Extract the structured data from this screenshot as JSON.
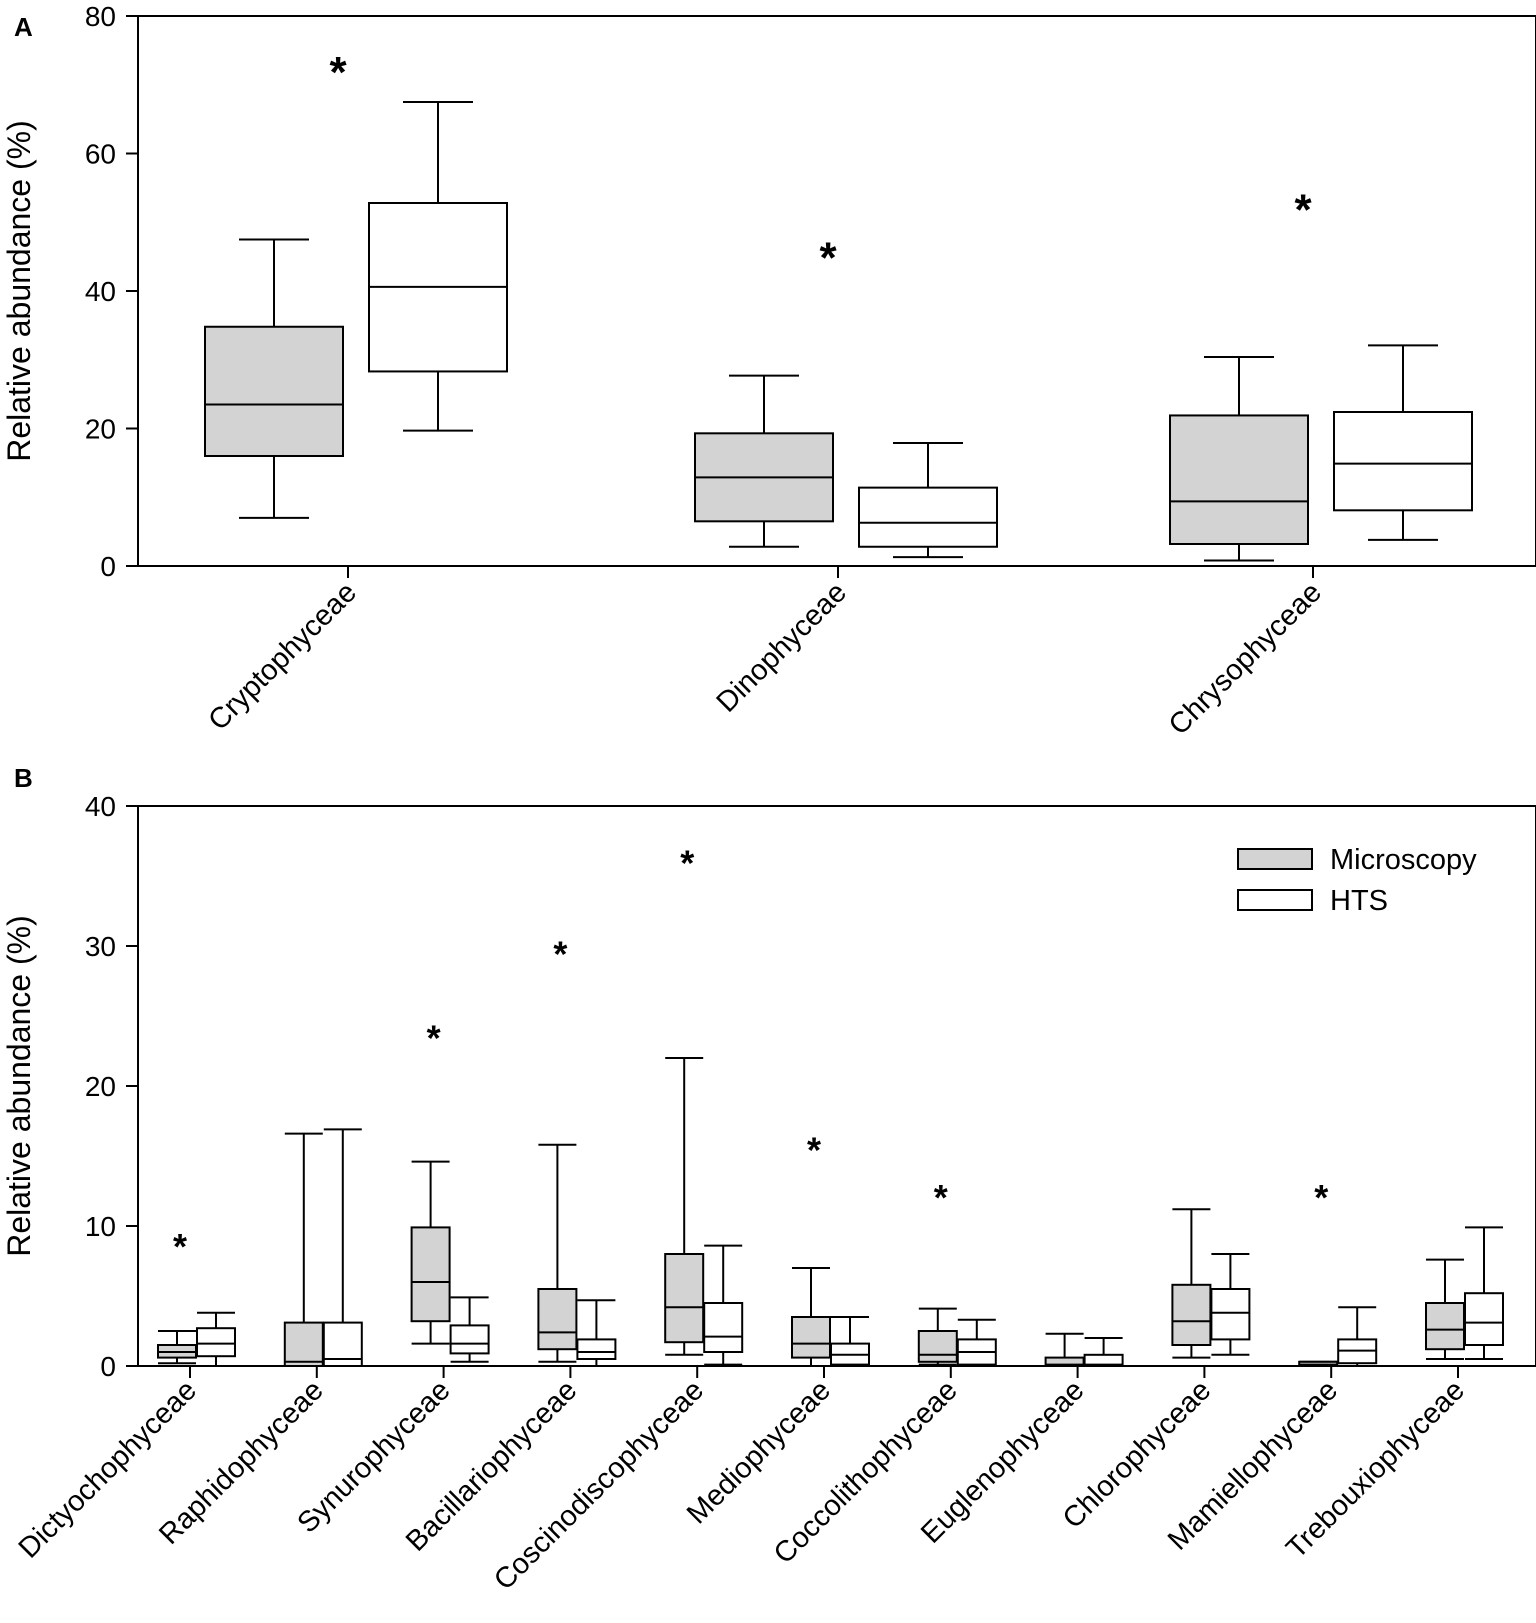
{
  "colors": {
    "microscopy": "#d3d3d3",
    "hts": "#ffffff",
    "stroke": "#000000"
  },
  "legend": {
    "position": "top-right",
    "items": [
      {
        "label": "Microscopy",
        "color": "#d3d3d3"
      },
      {
        "label": "HTS",
        "color": "#ffffff"
      }
    ]
  },
  "chart_data": [
    {
      "panel": "A",
      "type": "box",
      "ylabel": "Relative abundance (%)",
      "ylim": [
        0,
        80
      ],
      "yticks": [
        0,
        20,
        40,
        60,
        80
      ],
      "series_names": [
        "Microscopy",
        "HTS"
      ],
      "categories": [
        {
          "name": "Cryptophyceae",
          "significant": true,
          "star_y": 72,
          "boxes": [
            {
              "series": "Microscopy",
              "whisker_low": 7,
              "q1": 16,
              "median": 23.5,
              "q3": 34.8,
              "whisker_high": 47.5
            },
            {
              "series": "HTS",
              "whisker_low": 19.7,
              "q1": 28.3,
              "median": 40.6,
              "q3": 52.8,
              "whisker_high": 67.5
            }
          ]
        },
        {
          "name": "Dinophyceae",
          "significant": true,
          "star_y": 45,
          "boxes": [
            {
              "series": "Microscopy",
              "whisker_low": 2.8,
              "q1": 6.5,
              "median": 12.9,
              "q3": 19.3,
              "whisker_high": 27.7
            },
            {
              "series": "HTS",
              "whisker_low": 1.3,
              "q1": 2.8,
              "median": 6.3,
              "q3": 11.4,
              "whisker_high": 17.9
            }
          ]
        },
        {
          "name": "Chrysophyceae",
          "significant": true,
          "star_y": 52,
          "boxes": [
            {
              "series": "Microscopy",
              "whisker_low": 0.8,
              "q1": 3.2,
              "median": 9.4,
              "q3": 21.9,
              "whisker_high": 30.4
            },
            {
              "series": "HTS",
              "whisker_low": 3.8,
              "q1": 8.1,
              "median": 14.9,
              "q3": 22.4,
              "whisker_high": 32.1
            }
          ]
        }
      ]
    },
    {
      "panel": "B",
      "type": "box",
      "ylabel": "Relative abundance (%)",
      "ylim": [
        0,
        40
      ],
      "yticks": [
        0,
        10,
        20,
        30,
        40
      ],
      "series_names": [
        "Microscopy",
        "HTS"
      ],
      "categories": [
        {
          "name": "Dictyochophyceae",
          "significant": true,
          "star_y": 8.5,
          "boxes": [
            {
              "series": "Microscopy",
              "whisker_low": 0.2,
              "q1": 0.6,
              "median": 1.0,
              "q3": 1.5,
              "whisker_high": 2.5
            },
            {
              "series": "HTS",
              "whisker_low": 0.0,
              "q1": 0.7,
              "median": 1.6,
              "q3": 2.7,
              "whisker_high": 3.8
            }
          ]
        },
        {
          "name": "Raphidophyceae",
          "significant": false,
          "star_y": null,
          "boxes": [
            {
              "series": "Microscopy",
              "whisker_low": 0.0,
              "q1": 0.0,
              "median": 0.3,
              "q3": 3.1,
              "whisker_high": 16.6
            },
            {
              "series": "HTS",
              "whisker_low": 0.0,
              "q1": 0.0,
              "median": 0.5,
              "q3": 3.1,
              "whisker_high": 16.9
            }
          ]
        },
        {
          "name": "Synurophyceae",
          "significant": true,
          "star_y": 23.4,
          "boxes": [
            {
              "series": "Microscopy",
              "whisker_low": 1.6,
              "q1": 3.2,
              "median": 6.0,
              "q3": 9.9,
              "whisker_high": 14.6
            },
            {
              "series": "HTS",
              "whisker_low": 0.3,
              "q1": 0.9,
              "median": 1.6,
              "q3": 2.9,
              "whisker_high": 4.9
            }
          ]
        },
        {
          "name": "Bacillariophyceae",
          "significant": true,
          "star_y": 29.4,
          "boxes": [
            {
              "series": "Microscopy",
              "whisker_low": 0.3,
              "q1": 1.2,
              "median": 2.4,
              "q3": 5.5,
              "whisker_high": 15.8
            },
            {
              "series": "HTS",
              "whisker_low": 0.0,
              "q1": 0.5,
              "median": 1.0,
              "q3": 1.9,
              "whisker_high": 4.7
            }
          ]
        },
        {
          "name": "Coscinodiscophyceae",
          "significant": true,
          "star_y": 35.9,
          "boxes": [
            {
              "series": "Microscopy",
              "whisker_low": 0.8,
              "q1": 1.7,
              "median": 4.2,
              "q3": 8.0,
              "whisker_high": 22.0
            },
            {
              "series": "HTS",
              "whisker_low": 0.1,
              "q1": 1.0,
              "median": 2.1,
              "q3": 4.5,
              "whisker_high": 8.6
            }
          ]
        },
        {
          "name": "Mediophyceae",
          "significant": true,
          "star_y": 15.4,
          "boxes": [
            {
              "series": "Microscopy",
              "whisker_low": 0.0,
              "q1": 0.6,
              "median": 1.6,
              "q3": 3.5,
              "whisker_high": 7.0
            },
            {
              "series": "HTS",
              "whisker_low": 0.0,
              "q1": 0.1,
              "median": 0.8,
              "q3": 1.6,
              "whisker_high": 3.5
            }
          ]
        },
        {
          "name": "Coccolithophyceae",
          "significant": true,
          "star_y": 12.0,
          "boxes": [
            {
              "series": "Microscopy",
              "whisker_low": 0.1,
              "q1": 0.3,
              "median": 0.8,
              "q3": 2.5,
              "whisker_high": 4.1
            },
            {
              "series": "HTS",
              "whisker_low": 0.0,
              "q1": 0.1,
              "median": 1.0,
              "q3": 1.9,
              "whisker_high": 3.3
            }
          ]
        },
        {
          "name": "Euglenophyceae",
          "significant": false,
          "star_y": null,
          "boxes": [
            {
              "series": "Microscopy",
              "whisker_low": 0.0,
              "q1": 0.0,
              "median": 0.1,
              "q3": 0.6,
              "whisker_high": 2.3
            },
            {
              "series": "HTS",
              "whisker_low": 0.0,
              "q1": 0.0,
              "median": 0.1,
              "q3": 0.8,
              "whisker_high": 2.0
            }
          ]
        },
        {
          "name": "Chlorophyceae",
          "significant": false,
          "star_y": null,
          "boxes": [
            {
              "series": "Microscopy",
              "whisker_low": 0.6,
              "q1": 1.5,
              "median": 3.2,
              "q3": 5.8,
              "whisker_high": 11.2
            },
            {
              "series": "HTS",
              "whisker_low": 0.8,
              "q1": 1.9,
              "median": 3.8,
              "q3": 5.5,
              "whisker_high": 8.0
            }
          ]
        },
        {
          "name": "Mamiellophyceae",
          "significant": true,
          "star_y": 12.0,
          "boxes": [
            {
              "series": "Microscopy",
              "whisker_low": 0.0,
              "q1": 0.0,
              "median": 0.1,
              "q3": 0.3,
              "whisker_high": 0.3
            },
            {
              "series": "HTS",
              "whisker_low": 0.0,
              "q1": 0.2,
              "median": 1.1,
              "q3": 1.9,
              "whisker_high": 4.2
            }
          ]
        },
        {
          "name": "Trebouxiophyceae",
          "significant": false,
          "star_y": null,
          "boxes": [
            {
              "series": "Microscopy",
              "whisker_low": 0.5,
              "q1": 1.2,
              "median": 2.6,
              "q3": 4.5,
              "whisker_high": 7.6
            },
            {
              "series": "HTS",
              "whisker_low": 0.5,
              "q1": 1.5,
              "median": 3.1,
              "q3": 5.2,
              "whisker_high": 9.9
            }
          ]
        }
      ]
    }
  ]
}
